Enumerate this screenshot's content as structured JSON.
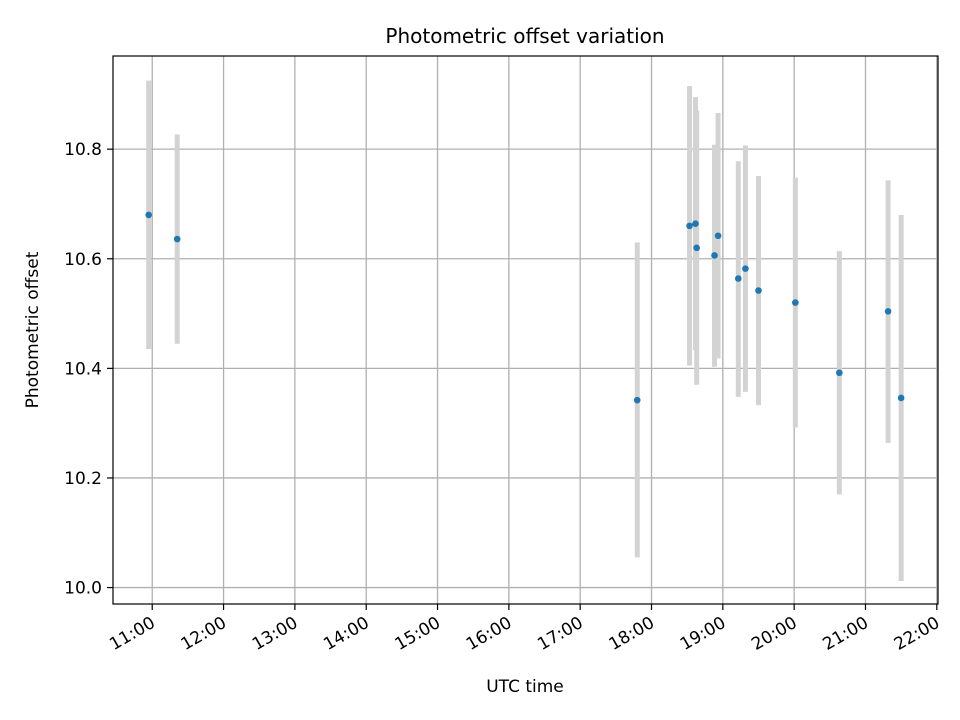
{
  "chart_data": {
    "type": "scatter",
    "title": "Photometric offset variation",
    "xlabel": "UTC time",
    "ylabel": "Photometric offset",
    "x_ticks": [
      "11:00",
      "12:00",
      "13:00",
      "14:00",
      "15:00",
      "16:00",
      "17:00",
      "18:00",
      "19:00",
      "20:00",
      "21:00",
      "22:00"
    ],
    "y_ticks": [
      "10.0",
      "10.2",
      "10.4",
      "10.6",
      "10.8"
    ],
    "xlim": [
      "10:27",
      "22:01"
    ],
    "ylim": [
      9.97,
      10.97
    ],
    "grid": true,
    "colors": {
      "point": "#1f77b4",
      "errorbar": "#d3d3d3",
      "grid": "#b0b0b0"
    },
    "series": [
      {
        "points": [
          {
            "x": "10:57",
            "y": 10.68,
            "err_low": 10.435,
            "err_high": 10.925
          },
          {
            "x": "11:21",
            "y": 10.636,
            "err_low": 10.445,
            "err_high": 10.827
          },
          {
            "x": "17:48",
            "y": 10.342,
            "err_low": 10.055,
            "err_high": 10.63
          },
          {
            "x": "18:32",
            "y": 10.66,
            "err_low": 10.405,
            "err_high": 10.915
          },
          {
            "x": "18:37",
            "y": 10.664,
            "err_low": 10.433,
            "err_high": 10.895
          },
          {
            "x": "18:38",
            "y": 10.62,
            "err_low": 10.37,
            "err_high": 10.87
          },
          {
            "x": "18:53",
            "y": 10.606,
            "err_low": 10.403,
            "err_high": 10.808
          },
          {
            "x": "18:56",
            "y": 10.642,
            "err_low": 10.418,
            "err_high": 10.866
          },
          {
            "x": "19:13",
            "y": 10.564,
            "err_low": 10.348,
            "err_high": 10.778
          },
          {
            "x": "19:19",
            "y": 10.582,
            "err_low": 10.357,
            "err_high": 10.807
          },
          {
            "x": "19:30",
            "y": 10.542,
            "err_low": 10.333,
            "err_high": 10.751
          },
          {
            "x": "20:01",
            "y": 10.52,
            "err_low": 10.292,
            "err_high": 10.748
          },
          {
            "x": "20:38",
            "y": 10.392,
            "err_low": 10.17,
            "err_high": 10.614
          },
          {
            "x": "21:19",
            "y": 10.504,
            "err_low": 10.264,
            "err_high": 10.743
          },
          {
            "x": "21:30",
            "y": 10.346,
            "err_low": 10.012,
            "err_high": 10.68
          }
        ]
      }
    ]
  }
}
